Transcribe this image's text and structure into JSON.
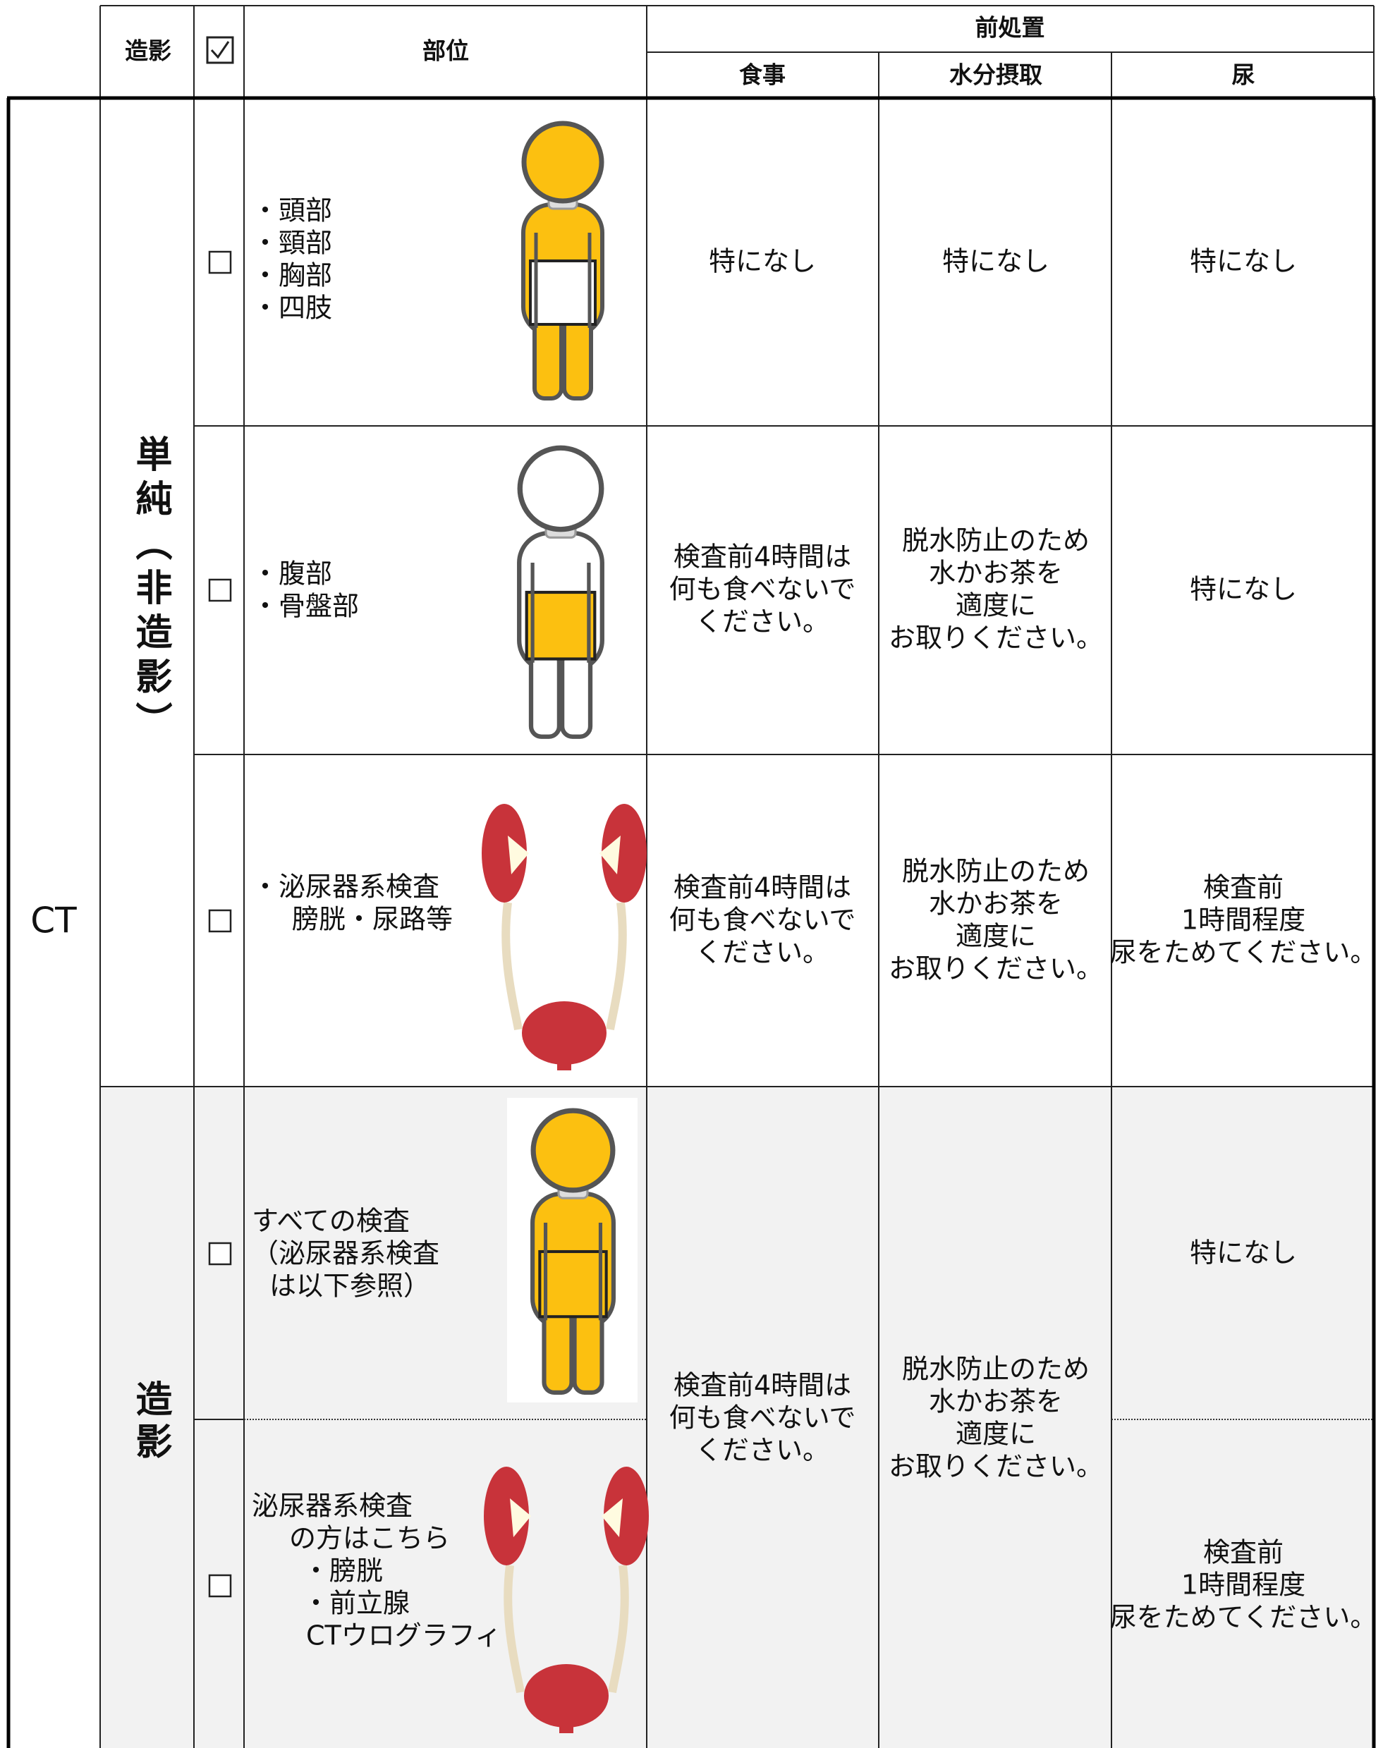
{
  "header": {
    "contrast": "造影",
    "part": "部位",
    "pretreatment": "前処置",
    "meal": "食事",
    "water": "水分摂取",
    "urine": "尿"
  },
  "modality": "CT",
  "groups": [
    {
      "label": "単純（非造影）",
      "rows": [
        {
          "parts": [
            "・頭部",
            "・頸部",
            "・胸部",
            "・四肢"
          ],
          "meal": [
            "特になし"
          ],
          "water": [
            "特になし"
          ],
          "urine": [
            "特になし"
          ]
        },
        {
          "parts": [
            "・腹部",
            "・骨盤部"
          ],
          "meal": [
            "検査前4時間は",
            "何も食べないで",
            "ください。"
          ],
          "water": [
            "脱水防止のため",
            "水かお茶を",
            "適度に",
            "お取りください。"
          ],
          "urine": [
            "特になし"
          ]
        },
        {
          "parts": [
            "・泌尿器系検査",
            "膀胱・尿路等"
          ],
          "meal": [
            "検査前4時間は",
            "何も食べないで",
            "ください。"
          ],
          "water": [
            "脱水防止のため",
            "水かお茶を",
            "適度に",
            "お取りください。"
          ],
          "urine": [
            "検査前",
            "1時間程度",
            "尿をためてください。"
          ]
        }
      ]
    },
    {
      "label": "造影",
      "meal": [
        "検査前4時間は",
        "何も食べないで",
        "ください。"
      ],
      "water": [
        "脱水防止のため",
        "水かお茶を",
        "適度に",
        "お取りください。"
      ],
      "rows": [
        {
          "parts": [
            "すべての検査",
            "（泌尿器系検査",
            "は以下参照）"
          ],
          "urine": [
            "特になし"
          ]
        },
        {
          "parts": [
            "泌尿器系検査",
            "の方はこちら",
            "・膀胱",
            "・前立腺",
            "CTウログラフィ"
          ],
          "urine": [
            "検査前",
            "1時間程度",
            "尿をためてください。"
          ]
        }
      ]
    }
  ]
}
